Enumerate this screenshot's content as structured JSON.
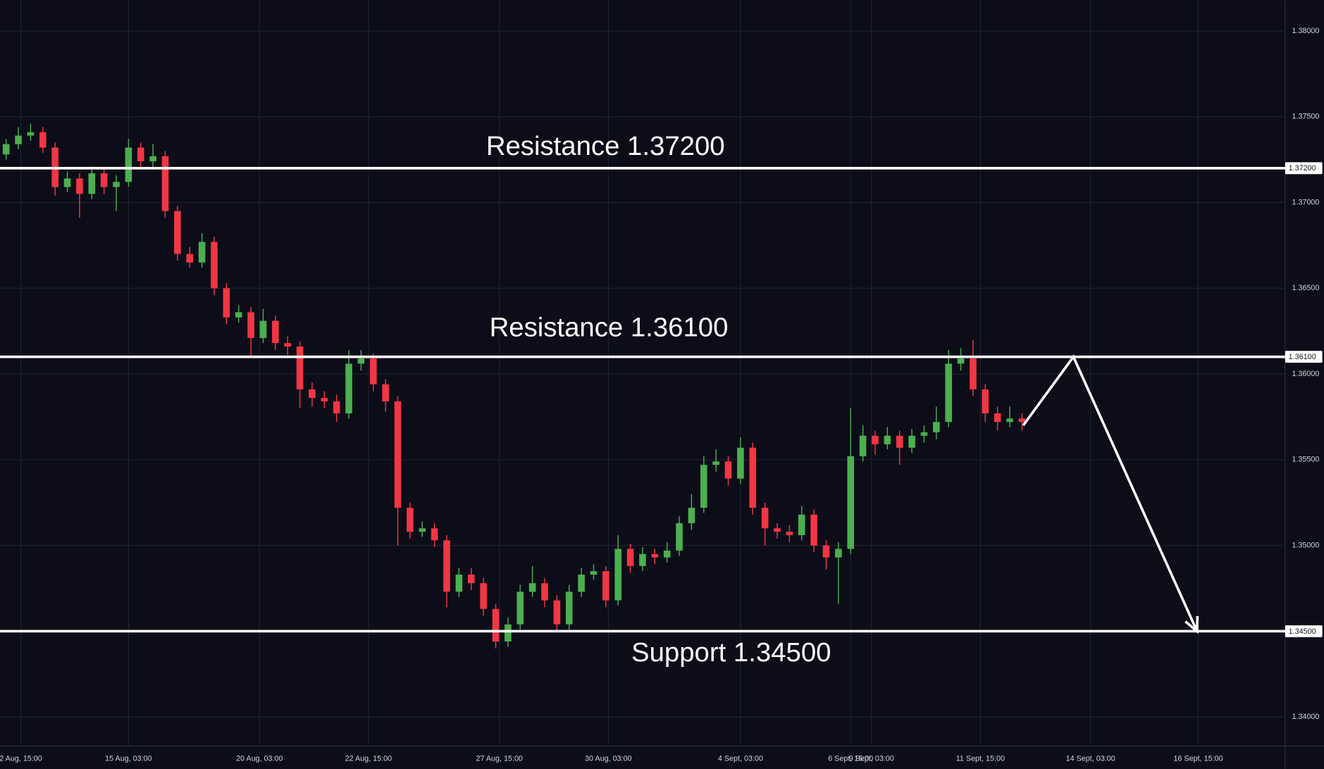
{
  "chart_data": {
    "type": "candlestick",
    "colors": {
      "up": "#4caf50",
      "down": "#f23645",
      "level": "#ffffff",
      "forecast": "#ffffff"
    },
    "grid": true,
    "xlim": [
      -0.5,
      104.5
    ],
    "ylim": [
      1.3383,
      1.3818
    ],
    "yticks": [
      {
        "value": 1.34,
        "label": "1.34000"
      },
      {
        "value": 1.345,
        "label": "1.34500"
      },
      {
        "value": 1.35,
        "label": "1.35000"
      },
      {
        "value": 1.355,
        "label": "1.35500"
      },
      {
        "value": 1.36,
        "label": "1.36000"
      },
      {
        "value": 1.365,
        "label": "1.36500"
      },
      {
        "value": 1.37,
        "label": "1.37000"
      },
      {
        "value": 1.375,
        "label": "1.37500"
      },
      {
        "value": 1.38,
        "label": "1.38000"
      }
    ],
    "xticks": [
      {
        "value": 1.2,
        "label": "2 Aug, 15:00"
      },
      {
        "value": 10,
        "label": "15 Aug, 03:00"
      },
      {
        "value": 20.7,
        "label": "20 Aug, 03:00"
      },
      {
        "value": 29.6,
        "label": "22 Aug, 15:00"
      },
      {
        "value": 40.3,
        "label": "27 Aug, 15:00"
      },
      {
        "value": 49.2,
        "label": "30 Aug, 03:00"
      },
      {
        "value": 60,
        "label": "4 Sept, 03:00"
      },
      {
        "value": 69,
        "label": "6 Sept, 15:00"
      },
      {
        "value": 70.7,
        "label": "9 Sept, 03:00"
      },
      {
        "value": 79.6,
        "label": "11 Sept, 15:00"
      },
      {
        "value": 88.6,
        "label": "14 Sept, 03:00"
      },
      {
        "value": 97.4,
        "label": "16 Sept, 15:00"
      }
    ],
    "open": [
      1.3728,
      1.3734,
      1.3739,
      1.3741,
      1.3732,
      1.3709,
      1.3714,
      1.3705,
      1.3717,
      1.3709,
      1.3712,
      1.3732,
      1.3724,
      1.3727,
      1.3695,
      1.367,
      1.3665,
      1.3677,
      1.365,
      1.3633,
      1.3636,
      1.3621,
      1.3631,
      1.3618,
      1.3616,
      1.3591,
      1.3586,
      1.3584,
      1.3577,
      1.3606,
      1.3609,
      1.3594,
      1.3584,
      1.3522,
      1.3508,
      1.351,
      1.3503,
      1.3473,
      1.3483,
      1.3478,
      1.3463,
      1.3444,
      1.3454,
      1.3473,
      1.3478,
      1.3468,
      1.3454,
      1.3473,
      1.3483,
      1.3485,
      1.3468,
      1.3498,
      1.3488,
      1.3495,
      1.3493,
      1.3497,
      1.3513,
      1.3522,
      1.3547,
      1.3549,
      1.3539,
      1.3557,
      1.3522,
      1.351,
      1.3508,
      1.3506,
      1.3518,
      1.35,
      1.3493,
      1.3498,
      1.3552,
      1.3564,
      1.3559,
      1.3564,
      1.3557,
      1.3564,
      1.3566,
      1.3572,
      1.3606,
      1.3609,
      1.3591,
      1.3577,
      1.3572,
      1.3574
    ],
    "high": [
      1.3737,
      1.3744,
      1.3746,
      1.3744,
      1.3735,
      1.3718,
      1.3717,
      1.3721,
      1.372,
      1.3716,
      1.3737,
      1.3735,
      1.3734,
      1.373,
      1.3698,
      1.3674,
      1.3682,
      1.368,
      1.3653,
      1.364,
      1.3639,
      1.3638,
      1.3634,
      1.3622,
      1.3619,
      1.3595,
      1.359,
      1.3588,
      1.3614,
      1.3614,
      1.3612,
      1.3597,
      1.3587,
      1.3525,
      1.3514,
      1.3513,
      1.3506,
      1.3487,
      1.3487,
      1.3481,
      1.3466,
      1.3458,
      1.3477,
      1.3488,
      1.3481,
      1.3471,
      1.3477,
      1.3487,
      1.3489,
      1.3488,
      1.3506,
      1.3501,
      1.3499,
      1.3498,
      1.3502,
      1.3517,
      1.353,
      1.3552,
      1.3556,
      1.3552,
      1.3563,
      1.356,
      1.3525,
      1.3513,
      1.3512,
      1.3523,
      1.3521,
      1.3503,
      1.3502,
      1.358,
      1.357,
      1.3567,
      1.3569,
      1.3567,
      1.3568,
      1.357,
      1.3581,
      1.3614,
      1.3615,
      1.362,
      1.3594,
      1.3581,
      1.3581,
      1.3577
    ],
    "low": [
      1.3725,
      1.3731,
      1.3736,
      1.3729,
      1.3704,
      1.3706,
      1.3691,
      1.3702,
      1.3705,
      1.3695,
      1.3709,
      1.372,
      1.3719,
      1.3691,
      1.3666,
      1.3662,
      1.3662,
      1.3646,
      1.3629,
      1.363,
      1.361,
      1.3618,
      1.3614,
      1.3611,
      1.358,
      1.3581,
      1.358,
      1.3572,
      1.3574,
      1.3602,
      1.359,
      1.3578,
      1.35,
      1.3504,
      1.3505,
      1.3499,
      1.3464,
      1.347,
      1.3474,
      1.3459,
      1.344,
      1.3441,
      1.3451,
      1.347,
      1.3464,
      1.345,
      1.3451,
      1.347,
      1.348,
      1.3464,
      1.3465,
      1.3484,
      1.3485,
      1.3489,
      1.349,
      1.3494,
      1.3509,
      1.3519,
      1.3543,
      1.3535,
      1.3536,
      1.3518,
      1.35,
      1.3504,
      1.3502,
      1.3503,
      1.3496,
      1.3486,
      1.3466,
      1.3495,
      1.3549,
      1.3553,
      1.3556,
      1.3547,
      1.3554,
      1.356,
      1.3562,
      1.3569,
      1.3602,
      1.3587,
      1.3572,
      1.3567,
      1.3569,
      1.3567
    ],
    "close": [
      1.3734,
      1.3739,
      1.3741,
      1.3732,
      1.3709,
      1.3714,
      1.3705,
      1.3717,
      1.3709,
      1.3712,
      1.3732,
      1.3724,
      1.3727,
      1.3695,
      1.367,
      1.3665,
      1.3677,
      1.365,
      1.3633,
      1.3636,
      1.3621,
      1.3631,
      1.3618,
      1.3616,
      1.3591,
      1.3586,
      1.3584,
      1.3577,
      1.3606,
      1.3609,
      1.3594,
      1.3584,
      1.3522,
      1.3508,
      1.351,
      1.3503,
      1.3473,
      1.3483,
      1.3478,
      1.3463,
      1.3444,
      1.3454,
      1.3473,
      1.3478,
      1.3468,
      1.3454,
      1.3473,
      1.3483,
      1.3485,
      1.3468,
      1.3498,
      1.3488,
      1.3495,
      1.3493,
      1.3497,
      1.3513,
      1.3522,
      1.3547,
      1.3549,
      1.3539,
      1.3557,
      1.3522,
      1.351,
      1.3508,
      1.3506,
      1.3518,
      1.35,
      1.3493,
      1.3498,
      1.3552,
      1.3564,
      1.3559,
      1.3564,
      1.3557,
      1.3564,
      1.3566,
      1.3572,
      1.3606,
      1.3609,
      1.3591,
      1.3577,
      1.3572,
      1.3574,
      1.3572
    ],
    "levels": [
      {
        "value": 1.372,
        "label": "Resistance 1.37200",
        "axis_label": "1.37200"
      },
      {
        "value": 1.361,
        "label": "Resistance 1.36100",
        "axis_label": "1.36100"
      },
      {
        "value": 1.345,
        "label": "Support 1.34500",
        "axis_label": "1.34500"
      }
    ],
    "forecast": {
      "x": [
        83.1,
        87.2,
        97.3
      ],
      "y": [
        1.357,
        1.361,
        1.345
      ]
    }
  }
}
